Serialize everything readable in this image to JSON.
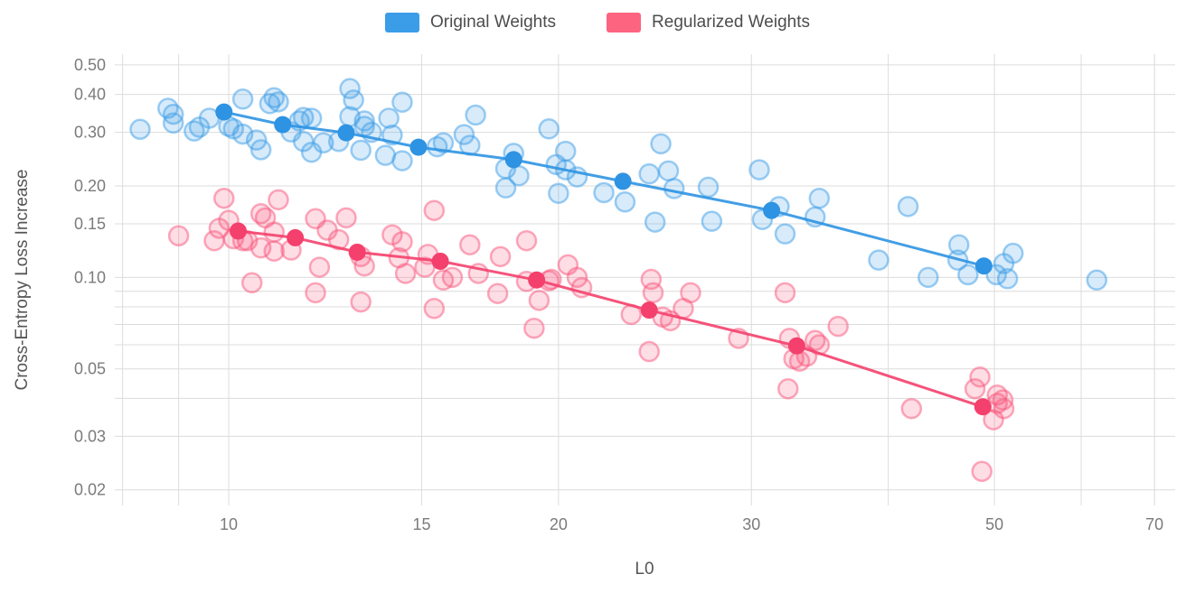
{
  "legend": {
    "items": [
      {
        "id": "original",
        "label": "Original Weights",
        "color": "#3b9de8"
      },
      {
        "id": "regularized",
        "label": "Regularized Weights",
        "color": "#fc6480"
      }
    ]
  },
  "chart_data": {
    "type": "scatter",
    "title": "",
    "xlabel": "L0",
    "ylabel": "Cross-Entropy Loss Increase",
    "x_scale": "log",
    "y_scale": "log",
    "xlim": [
      7.87,
      73.1
    ],
    "ylim": [
      0.01777,
      0.5425
    ],
    "grid": true,
    "grid_color": "#dcdcdc",
    "legend_position": "top-center",
    "x_ticks": [
      [
        8,
        ""
      ],
      [
        9,
        ""
      ],
      [
        10,
        "10"
      ],
      [
        15,
        "15"
      ],
      [
        20,
        "20"
      ],
      [
        30,
        "30"
      ],
      [
        40,
        ""
      ],
      [
        50,
        "50"
      ],
      [
        60,
        ""
      ],
      [
        70,
        "70"
      ]
    ],
    "y_ticks": [
      [
        0.02,
        "0.02"
      ],
      [
        0.03,
        "0.03"
      ],
      [
        0.04,
        ""
      ],
      [
        0.05,
        "0.05"
      ],
      [
        0.06,
        ""
      ],
      [
        0.07,
        ""
      ],
      [
        0.08,
        ""
      ],
      [
        0.09,
        ""
      ],
      [
        0.1,
        "0.10"
      ],
      [
        0.15,
        "0.15"
      ],
      [
        0.2,
        "0.20"
      ],
      [
        0.3,
        "0.30"
      ],
      [
        0.4,
        "0.40"
      ],
      [
        0.5,
        "0.50"
      ]
    ],
    "series": [
      {
        "id": "original-samples",
        "name": "Original Weights",
        "mode": "markers",
        "color": "#3b9de8",
        "points": [
          [
            8.3,
            0.307
          ],
          [
            8.8,
            0.36
          ],
          [
            8.9,
            0.344
          ],
          [
            8.9,
            0.322
          ],
          [
            9.3,
            0.303
          ],
          [
            9.4,
            0.312
          ],
          [
            9.6,
            0.334
          ],
          [
            10,
            0.314
          ],
          [
            10.1,
            0.308
          ],
          [
            10.3,
            0.296
          ],
          [
            10.3,
            0.386
          ],
          [
            10.6,
            0.283
          ],
          [
            10.7,
            0.263
          ],
          [
            10.9,
            0.373
          ],
          [
            11,
            0.39
          ],
          [
            11.1,
            0.378
          ],
          [
            11.4,
            0.301
          ],
          [
            11.6,
            0.327
          ],
          [
            11.7,
            0.28
          ],
          [
            11.7,
            0.336
          ],
          [
            11.9,
            0.334
          ],
          [
            11.9,
            0.258
          ],
          [
            12.2,
            0.277
          ],
          [
            12.6,
            0.28
          ],
          [
            12.9,
            0.338
          ],
          [
            12.9,
            0.418
          ],
          [
            13,
            0.383
          ],
          [
            13.2,
            0.262
          ],
          [
            13.3,
            0.314
          ],
          [
            13.3,
            0.327
          ],
          [
            13.5,
            0.3
          ],
          [
            13.9,
            0.252
          ],
          [
            14,
            0.334
          ],
          [
            14.1,
            0.294
          ],
          [
            14.4,
            0.242
          ],
          [
            14.4,
            0.377
          ],
          [
            15.5,
            0.269
          ],
          [
            15.7,
            0.277
          ],
          [
            16.4,
            0.295
          ],
          [
            16.6,
            0.272
          ],
          [
            16.8,
            0.342
          ],
          [
            17.9,
            0.228
          ],
          [
            17.9,
            0.197
          ],
          [
            18.2,
            0.256
          ],
          [
            18.4,
            0.216
          ],
          [
            19.6,
            0.308
          ],
          [
            19.9,
            0.235
          ],
          [
            20,
            0.189
          ],
          [
            20.3,
            0.26
          ],
          [
            20.3,
            0.226
          ],
          [
            20.8,
            0.214
          ],
          [
            22,
            0.19
          ],
          [
            23,
            0.177
          ],
          [
            24.2,
            0.219
          ],
          [
            24.5,
            0.152
          ],
          [
            24.8,
            0.275
          ],
          [
            25.2,
            0.224
          ],
          [
            25.5,
            0.196
          ],
          [
            27.4,
            0.198
          ],
          [
            27.6,
            0.153
          ],
          [
            30.5,
            0.226
          ],
          [
            30.7,
            0.155
          ],
          [
            31.8,
            0.171
          ],
          [
            32.2,
            0.139
          ],
          [
            34.3,
            0.158
          ],
          [
            34.6,
            0.182
          ],
          [
            39.2,
            0.114
          ],
          [
            41.7,
            0.171
          ],
          [
            43.5,
            0.1
          ],
          [
            46.3,
            0.114
          ],
          [
            46.4,
            0.128
          ],
          [
            47.3,
            0.102
          ],
          [
            50.2,
            0.102
          ],
          [
            51,
            0.111
          ],
          [
            51.4,
            0.099
          ],
          [
            52,
            0.12
          ],
          [
            62,
            0.098
          ]
        ]
      },
      {
        "id": "original-trend",
        "name": "Original Weights",
        "mode": "line+markers",
        "color": "#2e93e2",
        "points": [
          [
            9.9,
            0.35
          ],
          [
            11.2,
            0.318
          ],
          [
            12.8,
            0.299
          ],
          [
            14.9,
            0.268
          ],
          [
            18.2,
            0.244
          ],
          [
            22.9,
            0.207
          ],
          [
            31.3,
            0.166
          ],
          [
            48.9,
            0.109
          ]
        ]
      },
      {
        "id": "regularized-samples",
        "name": "Regularized Weights",
        "mode": "markers",
        "color": "#f9557b",
        "points": [
          [
            9,
            0.137
          ],
          [
            9.7,
            0.132
          ],
          [
            9.8,
            0.145
          ],
          [
            9.9,
            0.182
          ],
          [
            10,
            0.154
          ],
          [
            10.1,
            0.134
          ],
          [
            10.3,
            0.132
          ],
          [
            10.4,
            0.132
          ],
          [
            10.5,
            0.096
          ],
          [
            10.7,
            0.162
          ],
          [
            10.7,
            0.125
          ],
          [
            10.8,
            0.157
          ],
          [
            11,
            0.141
          ],
          [
            11,
            0.122
          ],
          [
            11.1,
            0.18
          ],
          [
            11.4,
            0.123
          ],
          [
            12,
            0.156
          ],
          [
            12,
            0.089
          ],
          [
            12.1,
            0.108
          ],
          [
            12.3,
            0.143
          ],
          [
            12.6,
            0.133
          ],
          [
            12.8,
            0.157
          ],
          [
            13.2,
            0.083
          ],
          [
            13.2,
            0.117
          ],
          [
            13.3,
            0.109
          ],
          [
            14.1,
            0.138
          ],
          [
            14.3,
            0.116
          ],
          [
            14.4,
            0.131
          ],
          [
            14.5,
            0.103
          ],
          [
            15.1,
            0.108
          ],
          [
            15.2,
            0.119
          ],
          [
            15.4,
            0.166
          ],
          [
            15.4,
            0.079
          ],
          [
            15.7,
            0.098
          ],
          [
            16,
            0.1
          ],
          [
            16.6,
            0.128
          ],
          [
            16.9,
            0.103
          ],
          [
            17.6,
            0.0885
          ],
          [
            17.7,
            0.117
          ],
          [
            18.7,
            0.132
          ],
          [
            18.7,
            0.097
          ],
          [
            19,
            0.068
          ],
          [
            19.2,
            0.084
          ],
          [
            19.6,
            0.0975
          ],
          [
            19.7,
            0.0985
          ],
          [
            20.4,
            0.11
          ],
          [
            20.8,
            0.1
          ],
          [
            21,
            0.0925
          ],
          [
            23.3,
            0.0755
          ],
          [
            24.2,
            0.057
          ],
          [
            24.3,
            0.0985
          ],
          [
            24.4,
            0.089
          ],
          [
            24.9,
            0.074
          ],
          [
            25.3,
            0.072
          ],
          [
            26,
            0.079
          ],
          [
            26.4,
            0.089
          ],
          [
            29.2,
            0.063
          ],
          [
            32.2,
            0.089
          ],
          [
            32.4,
            0.043
          ],
          [
            32.5,
            0.063
          ],
          [
            32.8,
            0.054
          ],
          [
            33.2,
            0.053
          ],
          [
            33.7,
            0.055
          ],
          [
            34.3,
            0.062
          ],
          [
            34.6,
            0.06
          ],
          [
            36,
            0.069
          ],
          [
            42,
            0.037
          ],
          [
            48,
            0.043
          ],
          [
            48.5,
            0.047
          ],
          [
            48.7,
            0.023
          ],
          [
            49.9,
            0.034
          ],
          [
            50.3,
            0.041
          ],
          [
            50.3,
            0.0385
          ],
          [
            50.9,
            0.0395
          ],
          [
            51,
            0.037
          ]
        ]
      },
      {
        "id": "regularized-trend",
        "name": "Regularized Weights",
        "mode": "line+markers",
        "color": "#f4406c",
        "points": [
          [
            10.2,
            0.142
          ],
          [
            11.5,
            0.135
          ],
          [
            13.1,
            0.121
          ],
          [
            15.6,
            0.113
          ],
          [
            19.1,
            0.098
          ],
          [
            24.2,
            0.078
          ],
          [
            33,
            0.0595
          ],
          [
            48.8,
            0.0375
          ]
        ]
      }
    ]
  }
}
